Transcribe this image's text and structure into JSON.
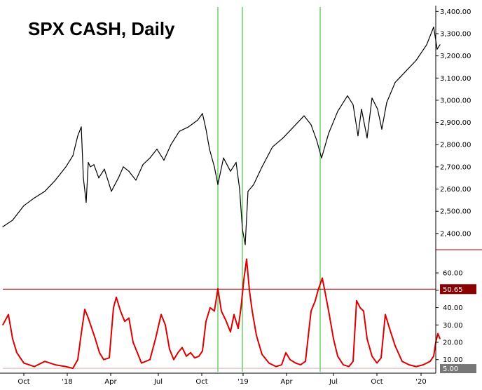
{
  "chart_data": [
    {
      "type": "line",
      "title": "SPX CASH, Daily",
      "ylim": [
        2330,
        3420
      ],
      "yticks": [
        "2,400.00",
        "2,500.00",
        "2,600.00",
        "2,700.00",
        "2,800.00",
        "2,900.00",
        "3,000.00",
        "3,100.00",
        "3,200.00",
        "3,300.00",
        "3,400.00"
      ],
      "ytick_values": [
        2400,
        2500,
        2600,
        2700,
        2800,
        2900,
        3000,
        3100,
        3200,
        3300,
        3400
      ],
      "series": [
        {
          "color": "#000000",
          "x": [
            0,
            14,
            30,
            45,
            60,
            75,
            90,
            100,
            107,
            112,
            115,
            119,
            122,
            125,
            130,
            137,
            145,
            155,
            165,
            172,
            180,
            190,
            200,
            210,
            220,
            230,
            240,
            252,
            265,
            278,
            285,
            290,
            295,
            302,
            307,
            315,
            325,
            333,
            338,
            342,
            346,
            350,
            358,
            370,
            385,
            400,
            415,
            430,
            440,
            448,
            455,
            465,
            478,
            492,
            500,
            507,
            512,
            520,
            527,
            535,
            541,
            548,
            560,
            575,
            590,
            605,
            615,
            620,
            624
          ],
          "values": [
            2430,
            2460,
            2525,
            2560,
            2590,
            2640,
            2700,
            2750,
            2840,
            2880,
            2650,
            2540,
            2720,
            2700,
            2710,
            2650,
            2690,
            2590,
            2650,
            2700,
            2680,
            2640,
            2710,
            2740,
            2780,
            2730,
            2800,
            2860,
            2880,
            2910,
            2940,
            2870,
            2780,
            2700,
            2620,
            2740,
            2680,
            2720,
            2600,
            2420,
            2350,
            2590,
            2620,
            2700,
            2790,
            2830,
            2880,
            2930,
            2890,
            2820,
            2740,
            2850,
            2950,
            3020,
            2980,
            2840,
            2960,
            2830,
            3010,
            2960,
            2870,
            2990,
            3080,
            3130,
            3180,
            3250,
            3330,
            3230,
            3250
          ]
        }
      ]
    },
    {
      "type": "line",
      "ylim": [
        3,
        73
      ],
      "yticks": [
        "10.00",
        "20.00",
        "30.00",
        "40.00",
        "50.00",
        "60.00"
      ],
      "ytick_values": [
        10,
        20,
        30,
        40,
        50,
        60
      ],
      "threshold": {
        "value": 50.65,
        "label": "50.65",
        "color": "#b30000"
      },
      "floor": {
        "value": 5.0,
        "label": "5.00"
      },
      "series": [
        {
          "color": "#dd0000",
          "x": [
            0,
            8,
            14,
            20,
            30,
            45,
            60,
            75,
            90,
            100,
            107,
            112,
            117,
            122,
            127,
            132,
            138,
            144,
            152,
            158,
            162,
            168,
            174,
            180,
            186,
            192,
            198,
            204,
            210,
            218,
            226,
            232,
            238,
            244,
            250,
            256,
            262,
            268,
            274,
            280,
            285,
            290,
            296,
            302,
            307,
            312,
            318,
            325,
            330,
            336,
            340,
            344,
            348,
            352,
            356,
            362,
            370,
            380,
            390,
            398,
            404,
            410,
            418,
            425,
            432,
            440,
            446,
            450,
            456,
            460,
            466,
            472,
            478,
            486,
            494,
            500,
            505,
            510,
            515,
            520,
            527,
            534,
            540,
            546,
            552,
            560,
            570,
            580,
            590,
            600,
            610,
            615,
            618,
            621,
            624
          ],
          "values": [
            30,
            36,
            22,
            14,
            8,
            6,
            9,
            7,
            6,
            5,
            10,
            25,
            39,
            34,
            28,
            22,
            14,
            10,
            11,
            40,
            46,
            38,
            32,
            34,
            20,
            14,
            8,
            9,
            10,
            22,
            36,
            30,
            16,
            10,
            14,
            17,
            12,
            14,
            11,
            12,
            15,
            32,
            40,
            38,
            51,
            38,
            33,
            26,
            36,
            28,
            40,
            56,
            68,
            50,
            38,
            24,
            13,
            8,
            6,
            7,
            14,
            10,
            8,
            7,
            9,
            38,
            44,
            50,
            57,
            49,
            36,
            22,
            12,
            7,
            6,
            9,
            44,
            40,
            38,
            22,
            12,
            8,
            11,
            36,
            28,
            18,
            9,
            7,
            6,
            7,
            9,
            12,
            20,
            25,
            22
          ]
        }
      ]
    }
  ],
  "x_axis": {
    "ticks": [
      {
        "label": "Oct",
        "x": 30
      },
      {
        "label": "'18",
        "x": 92
      },
      {
        "label": "Apr",
        "x": 154
      },
      {
        "label": "Jul",
        "x": 222
      },
      {
        "label": "Oct",
        "x": 284
      },
      {
        "label": "'19",
        "x": 343
      },
      {
        "label": "Apr",
        "x": 405
      },
      {
        "label": "Jul",
        "x": 472
      },
      {
        "label": "Oct",
        "x": 534
      },
      {
        "label": "'20",
        "x": 597
      }
    ]
  },
  "vlines": [
    {
      "x": 307,
      "color": "#22bb22"
    },
    {
      "x": 342,
      "color": "#22bb22"
    },
    {
      "x": 453,
      "color": "#22bb22"
    }
  ]
}
